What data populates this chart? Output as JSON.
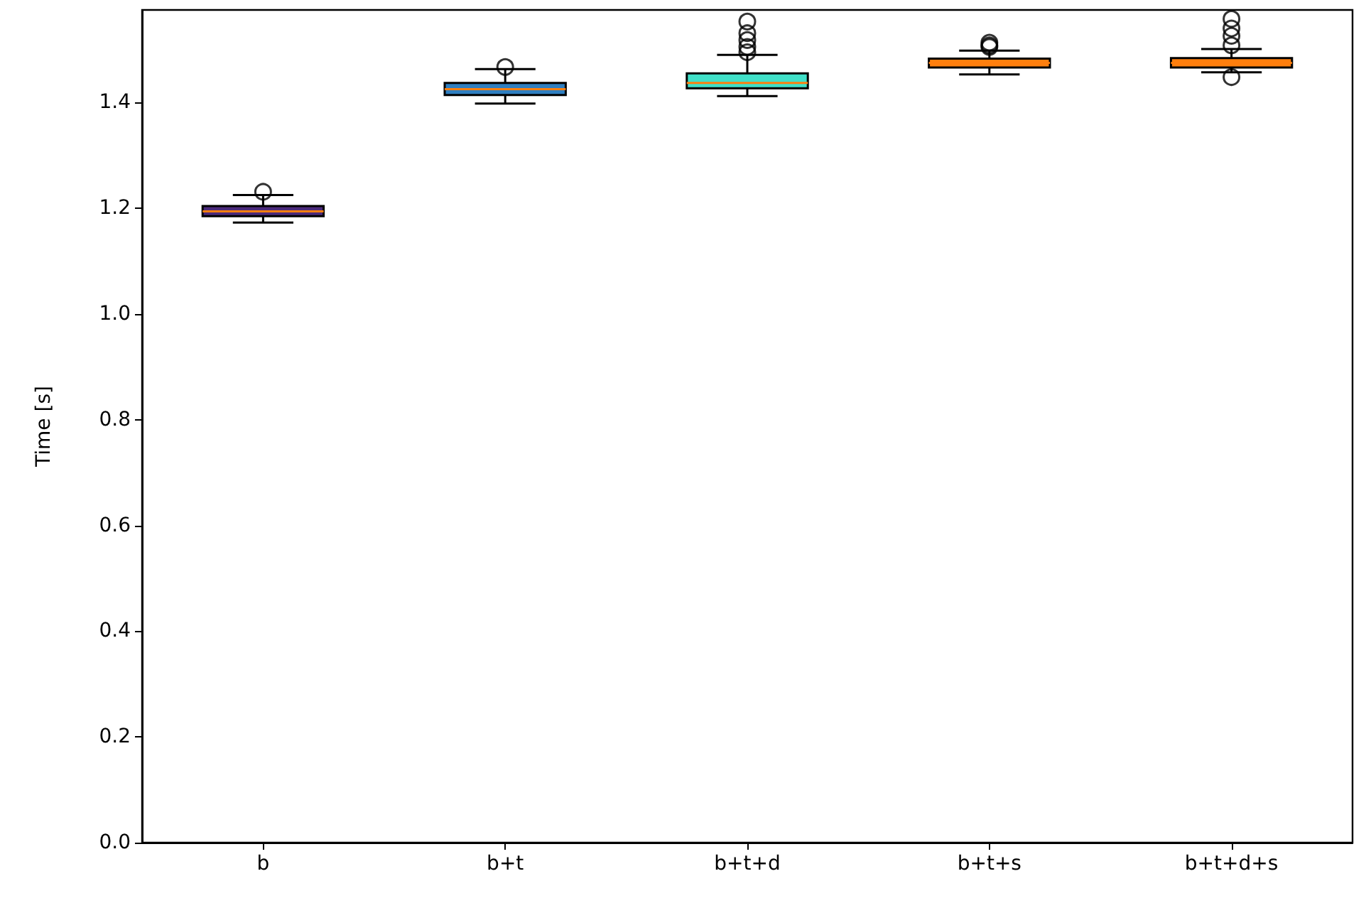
{
  "chart_data": {
    "type": "box",
    "ylabel": "Time [s]",
    "categories": [
      "b",
      "b+t",
      "b+t+d",
      "b+t+s",
      "b+t+d+s"
    ],
    "colors": [
      "#4b2a7a",
      "#2f7fc1",
      "#40e0c8",
      "#ff7f0e",
      "#ff7f0e"
    ],
    "boxes": [
      {
        "low": 1.173,
        "q1": 1.185,
        "median": 1.194,
        "q3": 1.204,
        "high": 1.225,
        "outliers": [
          1.231
        ]
      },
      {
        "low": 1.398,
        "q1": 1.414,
        "median": 1.425,
        "q3": 1.437,
        "high": 1.463,
        "outliers": [
          1.467
        ]
      },
      {
        "low": 1.412,
        "q1": 1.427,
        "median": 1.437,
        "q3": 1.455,
        "high": 1.49,
        "outliers": [
          1.553,
          1.531,
          1.518,
          1.505,
          1.495
        ]
      },
      {
        "low": 1.453,
        "q1": 1.466,
        "median": 1.475,
        "q3": 1.483,
        "high": 1.498,
        "outliers": [
          1.513,
          1.508,
          1.505
        ]
      },
      {
        "low": 1.457,
        "q1": 1.466,
        "median": 1.475,
        "q3": 1.484,
        "high": 1.501,
        "outliers": [
          1.558,
          1.54,
          1.526,
          1.508,
          1.448
        ]
      }
    ],
    "ylim": [
      0,
      1.575
    ],
    "yticks": [
      {
        "value": 0,
        "label": "0.0"
      },
      {
        "value": 0.2,
        "label": "0.2"
      },
      {
        "value": 0.4,
        "label": "0.4"
      },
      {
        "value": 0.6,
        "label": "0.6"
      },
      {
        "value": 0.8,
        "label": "0.8"
      },
      {
        "value": 1.0,
        "label": "1.0"
      },
      {
        "value": 1.2,
        "label": "1.2"
      },
      {
        "value": 1.4,
        "label": "1.4"
      }
    ]
  }
}
